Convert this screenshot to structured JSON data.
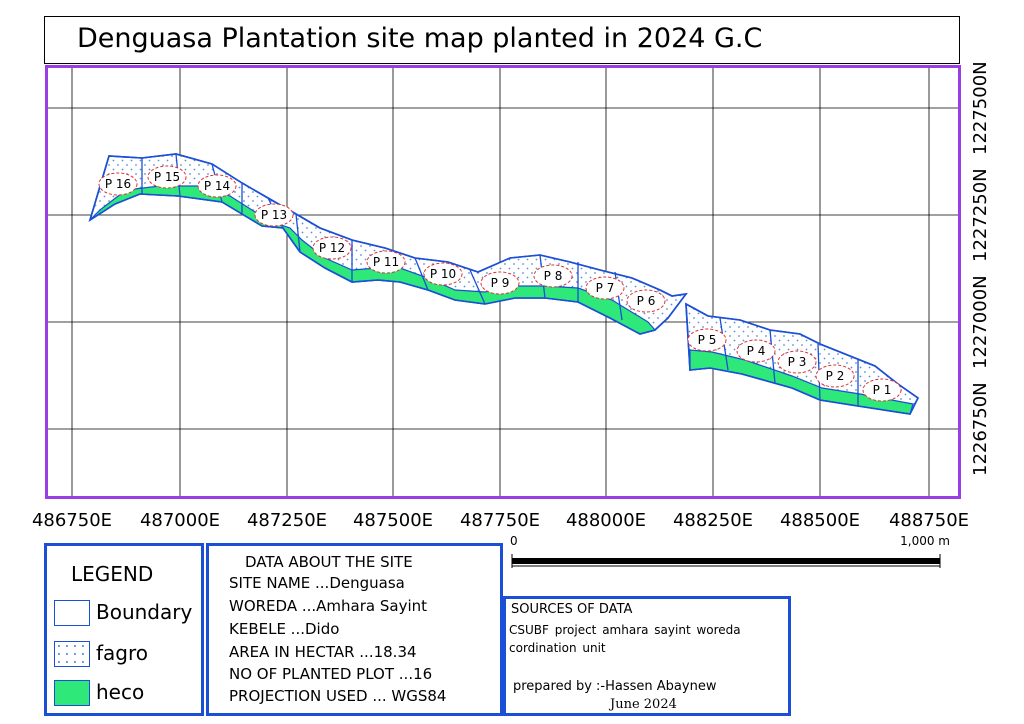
{
  "title": "Denguasa Plantation site map planted in 2024 G.C",
  "x_labels": [
    "486750E",
    "487000E",
    "487250E",
    "487500E",
    "487750E",
    "488000E",
    "488250E",
    "488500E",
    "488750E"
  ],
  "y_labels": [
    "1226750N",
    "1227000N",
    "1227250N",
    "1227500N"
  ],
  "plots": [
    "P 16",
    "P 15",
    "P 14",
    "P 13",
    "P 12",
    "P 11",
    "P 10",
    "P 9",
    "P 8",
    "P 7",
    "P 6",
    "P 5",
    "P 4",
    "P 3",
    "P 2",
    "P 1"
  ],
  "legend": {
    "title": "LEGEND",
    "items": [
      {
        "label": "Boundary",
        "type": "boundary"
      },
      {
        "label": "fagro",
        "type": "fagro"
      },
      {
        "label": "heco",
        "type": "heco"
      }
    ]
  },
  "site_data": {
    "title": "DATA ABOUT THE SITE",
    "lines": [
      "SITE NAME ...Denguasa",
      "WOREDA ...Amhara Sayint",
      "KEBELE ...Dido",
      "AREA IN HECTAR ...18.34",
      "NO OF PLANTED PLOT ...16",
      "PROJECTION USED ... WGS84"
    ]
  },
  "sources": {
    "title": "SOURCES OF DATA",
    "description": "CSUBF project amhara sayint woreda cordination unit",
    "prepared_by": "prepared by :-Hassen Abaynew",
    "date": "June 2024"
  },
  "scale_bar": {
    "start_label": "0",
    "end_label": "1,000 m"
  },
  "colors": {
    "boundary": "#1a4fd6",
    "heco": "#2ee87a",
    "fagro_dots": "#5b8fd6",
    "frame": "#9a3de6",
    "plot_label_ring": "#e03030"
  }
}
